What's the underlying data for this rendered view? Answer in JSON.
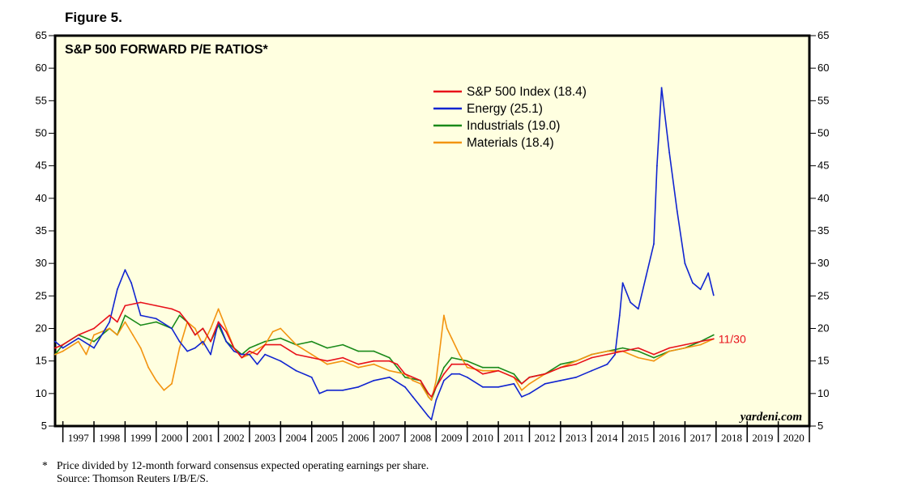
{
  "figure_label": "Figure 5.",
  "footnote": {
    "star": "*",
    "line1": "Price divided by 12-month forward consensus expected operating earnings per share.",
    "line2": "Source: Thomson Reuters I/B/E/S."
  },
  "chart_data": {
    "type": "line",
    "title": "S&P 500 FORWARD P/E RATIOS*",
    "xlabel": "",
    "ylabel": "",
    "xlim": [
      1996.75,
      2021.0
    ],
    "ylim": [
      5,
      65
    ],
    "y_ticks": [
      5,
      10,
      15,
      20,
      25,
      30,
      35,
      40,
      45,
      50,
      55,
      60,
      65
    ],
    "x_tick_labels": [
      "1997",
      "1998",
      "1999",
      "2000",
      "2001",
      "2002",
      "2003",
      "2004",
      "2005",
      "2006",
      "2007",
      "2008",
      "2009",
      "2010",
      "2011",
      "2012",
      "2013",
      "2014",
      "2015",
      "2016",
      "2017",
      "2018",
      "2019",
      "2020"
    ],
    "background": "#ffffe0",
    "legend_position": "top-center",
    "watermark": "yardeni.com",
    "annotation": {
      "text": "11/30",
      "x": 2017.92,
      "y": 18.4,
      "color": "#e8101a"
    },
    "series": [
      {
        "name": "S&P 500 Index (18.4)",
        "color": "#e8101a",
        "x": [
          1996.75,
          1997.0,
          1997.5,
          1998.0,
          1998.5,
          1998.75,
          1999.0,
          1999.5,
          2000.0,
          2000.5,
          2000.75,
          2001.0,
          2001.25,
          2001.5,
          2001.75,
          2002.0,
          2002.25,
          2002.5,
          2002.75,
          2003.0,
          2003.25,
          2003.5,
          2004.0,
          2004.5,
          2005.0,
          2005.5,
          2006.0,
          2006.5,
          2007.0,
          2007.5,
          2007.75,
          2008.0,
          2008.5,
          2008.75,
          2008.85,
          2009.0,
          2009.25,
          2009.5,
          2010.0,
          2010.5,
          2011.0,
          2011.5,
          2011.75,
          2012.0,
          2012.5,
          2013.0,
          2013.5,
          2014.0,
          2014.5,
          2015.0,
          2015.5,
          2016.0,
          2016.5,
          2017.0,
          2017.5,
          2017.92
        ],
        "values": [
          17.0,
          17.5,
          19.0,
          20.0,
          22.0,
          21.0,
          23.5,
          24.0,
          23.5,
          23.0,
          22.5,
          21.0,
          19.0,
          20.0,
          18.0,
          21.0,
          19.5,
          17.0,
          15.5,
          16.5,
          16.0,
          17.5,
          17.5,
          16.0,
          15.5,
          15.0,
          15.5,
          14.5,
          15.0,
          15.0,
          14.5,
          13.0,
          12.0,
          10.0,
          9.5,
          11.0,
          13.0,
          14.5,
          14.5,
          13.0,
          13.5,
          12.5,
          11.5,
          12.5,
          13.0,
          14.0,
          14.5,
          15.5,
          16.0,
          16.5,
          17.0,
          16.0,
          17.0,
          17.5,
          18.0,
          18.4
        ]
      },
      {
        "name": "Energy (25.1)",
        "color": "#1024d0",
        "x": [
          1996.75,
          1997.0,
          1997.5,
          1998.0,
          1998.5,
          1998.75,
          1999.0,
          1999.2,
          1999.5,
          2000.0,
          2000.5,
          2000.75,
          2001.0,
          2001.25,
          2001.5,
          2001.75,
          2002.0,
          2002.25,
          2002.5,
          2002.75,
          2003.0,
          2003.25,
          2003.5,
          2004.0,
          2004.5,
          2005.0,
          2005.25,
          2005.5,
          2006.0,
          2006.5,
          2007.0,
          2007.5,
          2008.0,
          2008.25,
          2008.5,
          2008.75,
          2008.85,
          2009.0,
          2009.25,
          2009.5,
          2009.75,
          2010.0,
          2010.5,
          2011.0,
          2011.5,
          2011.75,
          2012.0,
          2012.5,
          2013.0,
          2013.5,
          2014.0,
          2014.5,
          2014.75,
          2014.9,
          2015.0,
          2015.25,
          2015.5,
          2015.75,
          2016.0,
          2016.1,
          2016.25,
          2016.5,
          2016.75,
          2017.0,
          2017.25,
          2017.5,
          2017.75,
          2017.92
        ],
        "values": [
          18.0,
          17.0,
          18.5,
          17.0,
          21.0,
          26.0,
          29.0,
          27.0,
          22.0,
          21.5,
          20.0,
          18.0,
          16.5,
          17.0,
          18.0,
          16.0,
          21.0,
          18.0,
          16.5,
          16.0,
          16.0,
          14.5,
          16.0,
          15.0,
          13.5,
          12.5,
          10.0,
          10.5,
          10.5,
          11.0,
          12.0,
          12.5,
          11.0,
          9.5,
          8.0,
          6.5,
          6.0,
          9.0,
          12.0,
          13.0,
          13.0,
          12.5,
          11.0,
          11.0,
          11.5,
          9.5,
          10.0,
          11.5,
          12.0,
          12.5,
          13.5,
          14.5,
          16.0,
          22.0,
          27.0,
          24.0,
          23.0,
          28.0,
          33.0,
          45.0,
          57.0,
          47.0,
          38.0,
          30.0,
          27.0,
          26.0,
          28.5,
          25.1
        ]
      },
      {
        "name": "Industrials (19.0)",
        "color": "#1a8a1a",
        "x": [
          1996.75,
          1997.0,
          1997.5,
          1998.0,
          1998.5,
          1998.75,
          1999.0,
          1999.5,
          2000.0,
          2000.5,
          2000.75,
          2001.0,
          2001.25,
          2001.5,
          2001.75,
          2002.0,
          2002.25,
          2002.5,
          2002.75,
          2003.0,
          2003.25,
          2003.5,
          2004.0,
          2004.5,
          2005.0,
          2005.5,
          2006.0,
          2006.5,
          2007.0,
          2007.5,
          2007.75,
          2008.0,
          2008.5,
          2008.75,
          2008.85,
          2009.0,
          2009.25,
          2009.5,
          2010.0,
          2010.5,
          2011.0,
          2011.5,
          2011.75,
          2012.0,
          2012.5,
          2013.0,
          2013.5,
          2014.0,
          2014.5,
          2015.0,
          2015.5,
          2016.0,
          2016.5,
          2017.0,
          2017.5,
          2017.92
        ],
        "values": [
          16.0,
          17.5,
          19.0,
          18.0,
          20.0,
          19.0,
          22.0,
          20.5,
          21.0,
          20.0,
          22.0,
          21.0,
          19.0,
          20.0,
          18.0,
          20.5,
          18.0,
          17.0,
          16.0,
          17.0,
          17.5,
          18.0,
          18.5,
          17.5,
          18.0,
          17.0,
          17.5,
          16.5,
          16.5,
          15.5,
          14.0,
          12.5,
          12.0,
          9.5,
          9.0,
          11.0,
          14.0,
          15.5,
          15.0,
          14.0,
          14.0,
          13.0,
          11.5,
          12.5,
          13.0,
          14.5,
          15.0,
          16.0,
          16.5,
          17.0,
          16.5,
          15.5,
          16.5,
          17.0,
          18.0,
          19.0
        ]
      },
      {
        "name": "Materials (18.4)",
        "color": "#f29410",
        "x": [
          1996.75,
          1997.0,
          1997.5,
          1997.75,
          1998.0,
          1998.5,
          1998.75,
          1999.0,
          1999.25,
          1999.5,
          1999.75,
          2000.0,
          2000.25,
          2000.5,
          2000.75,
          2001.0,
          2001.25,
          2001.5,
          2001.75,
          2002.0,
          2002.25,
          2002.5,
          2002.75,
          2003.0,
          2003.5,
          2003.75,
          2004.0,
          2004.5,
          2005.0,
          2005.5,
          2006.0,
          2006.5,
          2007.0,
          2007.5,
          2008.0,
          2008.25,
          2008.5,
          2008.75,
          2008.85,
          2009.0,
          2009.1,
          2009.25,
          2009.35,
          2009.5,
          2009.75,
          2010.0,
          2010.5,
          2011.0,
          2011.5,
          2011.75,
          2012.0,
          2012.5,
          2013.0,
          2013.5,
          2014.0,
          2014.5,
          2015.0,
          2015.5,
          2016.0,
          2016.5,
          2017.0,
          2017.5,
          2017.92
        ],
        "values": [
          16.0,
          16.5,
          18.0,
          16.0,
          19.0,
          20.0,
          19.0,
          21.0,
          19.0,
          17.0,
          14.0,
          12.0,
          10.5,
          11.5,
          17.0,
          21.0,
          20.0,
          17.5,
          20.0,
          23.0,
          20.0,
          17.0,
          15.5,
          16.0,
          17.5,
          19.5,
          20.0,
          17.5,
          16.0,
          14.5,
          15.0,
          14.0,
          14.5,
          13.5,
          13.0,
          12.0,
          11.5,
          9.5,
          9.0,
          12.0,
          16.0,
          22.0,
          20.0,
          18.5,
          16.0,
          14.0,
          13.5,
          13.5,
          12.5,
          10.5,
          11.5,
          13.0,
          14.0,
          15.0,
          16.0,
          16.5,
          16.5,
          15.5,
          15.0,
          16.5,
          17.0,
          17.5,
          18.4
        ]
      }
    ]
  }
}
